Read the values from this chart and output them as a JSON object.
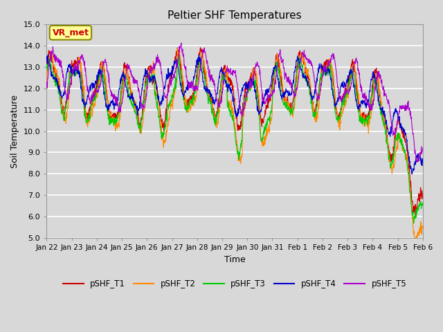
{
  "title": "Peltier SHF Temperatures",
  "xlabel": "Time",
  "ylabel": "Soil Temperature",
  "ylim": [
    5.0,
    15.0
  ],
  "yticks": [
    5.0,
    6.0,
    7.0,
    8.0,
    9.0,
    10.0,
    11.0,
    12.0,
    13.0,
    14.0,
    15.0
  ],
  "x_labels": [
    "Jan 22",
    "Jan 23",
    "Jan 24",
    "Jan 25",
    "Jan 26",
    "Jan 27",
    "Jan 28",
    "Jan 29",
    "Jan 30",
    "Jan 31",
    "Feb 1",
    "Feb 2",
    "Feb 3",
    "Feb 4",
    "Feb 5",
    "Feb 6"
  ],
  "background_color": "#d8d8d8",
  "plot_bg_color": "#d8d8d8",
  "grid_color": "#ffffff",
  "series": [
    {
      "label": "pSHF_T1",
      "color": "#cc0000"
    },
    {
      "label": "pSHF_T2",
      "color": "#ff8800"
    },
    {
      "label": "pSHF_T3",
      "color": "#00cc00"
    },
    {
      "label": "pSHF_T4",
      "color": "#0000cc"
    },
    {
      "label": "pSHF_T5",
      "color": "#aa00cc"
    }
  ],
  "annotation_text": "VR_met",
  "annotation_color": "#cc0000",
  "annotation_bg": "#ffff99",
  "annotation_border": "#888800",
  "n_points": 1440,
  "legend_linestyle": "-"
}
